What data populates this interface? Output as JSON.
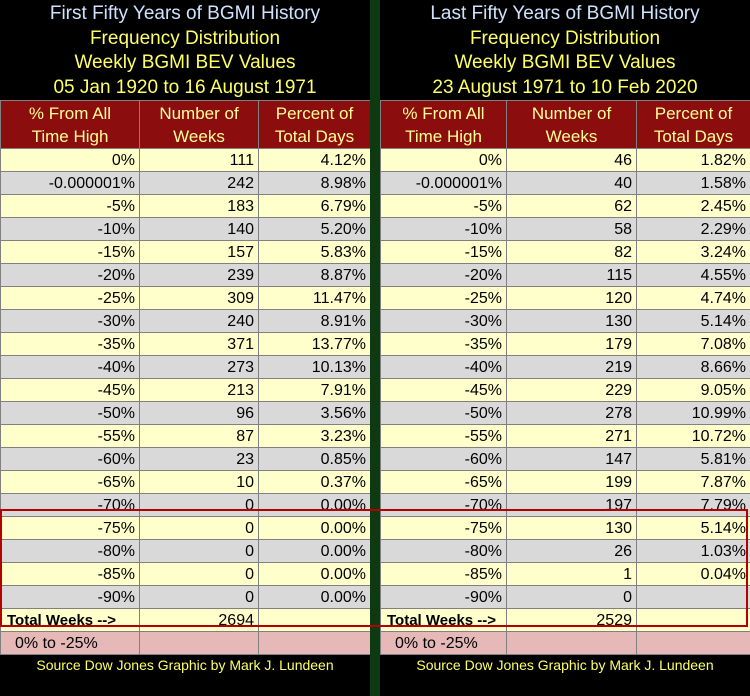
{
  "left": {
    "title": "First Fifty Years of BGMI History",
    "subtitle1": "Frequency Distribution",
    "subtitle2": "Weekly BGMI BEV Values",
    "dates": "05 Jan 1920 to 16 August 1971",
    "col1": [
      "% From All",
      "Time High"
    ],
    "col2": [
      "Number of",
      "Weeks"
    ],
    "col3": [
      "Percent of",
      "Total Days"
    ],
    "rows": [
      [
        "0%",
        "111",
        "4.12%"
      ],
      [
        "-0.000001%",
        "242",
        "8.98%"
      ],
      [
        "-5%",
        "183",
        "6.79%"
      ],
      [
        "-10%",
        "140",
        "5.20%"
      ],
      [
        "-15%",
        "157",
        "5.83%"
      ],
      [
        "-20%",
        "239",
        "8.87%"
      ],
      [
        "-25%",
        "309",
        "11.47%"
      ],
      [
        "-30%",
        "240",
        "8.91%"
      ],
      [
        "-35%",
        "371",
        "13.77%"
      ],
      [
        "-40%",
        "273",
        "10.13%"
      ],
      [
        "-45%",
        "213",
        "7.91%"
      ],
      [
        "-50%",
        "96",
        "3.56%"
      ],
      [
        "-55%",
        "87",
        "3.23%"
      ],
      [
        "-60%",
        "23",
        "0.85%"
      ],
      [
        "-65%",
        "10",
        "0.37%"
      ],
      [
        "-70%",
        "0",
        "0.00%"
      ],
      [
        "-75%",
        "0",
        "0.00%"
      ],
      [
        "-80%",
        "0",
        "0.00%"
      ],
      [
        "-85%",
        "0",
        "0.00%"
      ],
      [
        "-90%",
        "0",
        "0.00%"
      ]
    ],
    "total_label": "Total Weeks -->",
    "total_value": "2694",
    "range_label": "0% to -25%",
    "source": "Source Dow Jones   Graphic by Mark J. Lundeen"
  },
  "right": {
    "title": "Last Fifty Years of BGMI History",
    "subtitle1": "Frequency Distribution",
    "subtitle2": "Weekly BGMI BEV Values",
    "dates": "23 August 1971 to 10 Feb 2020",
    "col1": [
      "% From All",
      "Time High"
    ],
    "col2": [
      "Number of",
      "Weeks"
    ],
    "col3": [
      "Percent of",
      "Total Days"
    ],
    "rows": [
      [
        "0%",
        "46",
        "1.82%"
      ],
      [
        "-0.000001%",
        "40",
        "1.58%"
      ],
      [
        "-5%",
        "62",
        "2.45%"
      ],
      [
        "-10%",
        "58",
        "2.29%"
      ],
      [
        "-15%",
        "82",
        "3.24%"
      ],
      [
        "-20%",
        "115",
        "4.55%"
      ],
      [
        "-25%",
        "120",
        "4.74%"
      ],
      [
        "-30%",
        "130",
        "5.14%"
      ],
      [
        "-35%",
        "179",
        "7.08%"
      ],
      [
        "-40%",
        "219",
        "8.66%"
      ],
      [
        "-45%",
        "229",
        "9.05%"
      ],
      [
        "-50%",
        "278",
        "10.99%"
      ],
      [
        "-55%",
        "271",
        "10.72%"
      ],
      [
        "-60%",
        "147",
        "5.81%"
      ],
      [
        "-65%",
        "199",
        "7.87%"
      ],
      [
        "-70%",
        "197",
        "7.79%"
      ],
      [
        "-75%",
        "130",
        "5.14%"
      ],
      [
        "-80%",
        "26",
        "1.03%"
      ],
      [
        "-85%",
        "1",
        "0.04%"
      ],
      [
        "-90%",
        "0",
        ""
      ]
    ],
    "total_label": "Total Weeks -->",
    "total_value": "2529",
    "range_label": "0% to -25%",
    "source": "Source Dow Jones   Graphic by Mark J. Lundeen"
  },
  "colors": {
    "header_bg": "#8c0d0d",
    "header_text": "#ffff99",
    "title_text": "#cfe3ff",
    "subtitle_text": "#ffff66",
    "row_odd": "#ffffcc",
    "row_even": "#d9d9d9",
    "range_row": "#e6b8b8",
    "highlight_border": "#b40000"
  }
}
